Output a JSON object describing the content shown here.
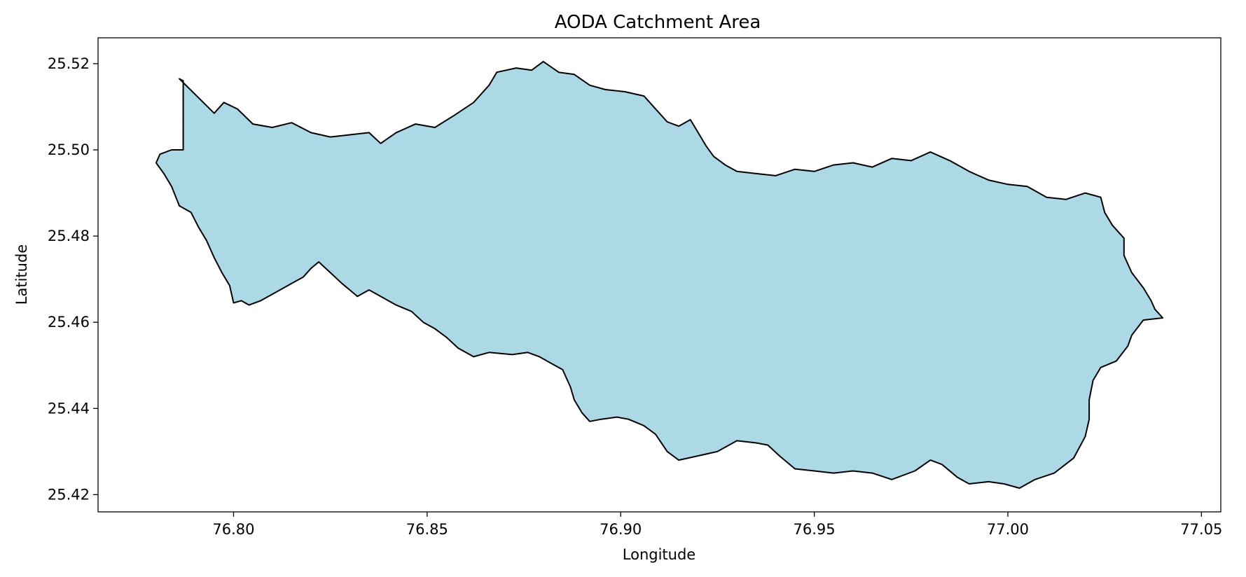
{
  "chart_data": {
    "type": "map",
    "title": "AODA Catchment Area",
    "xlabel": "Longitude",
    "ylabel": "Latitude",
    "xlim": [
      76.765,
      77.055
    ],
    "ylim": [
      25.416,
      25.526
    ],
    "xticks": [
      76.8,
      76.85,
      76.9,
      76.95,
      77.0,
      77.05
    ],
    "xtick_labels": [
      "76.80",
      "76.85",
      "76.90",
      "76.95",
      "77.00",
      "77.05"
    ],
    "yticks": [
      25.42,
      25.44,
      25.46,
      25.48,
      25.5,
      25.52
    ],
    "ytick_labels": [
      "25.42",
      "25.44",
      "25.46",
      "25.48",
      "25.50",
      "25.52"
    ],
    "grid": false,
    "fill_color": "#add8e6",
    "edge_color": "#000000",
    "features": [
      {
        "name": "AODA",
        "boundary": [
          [
            76.786,
            25.5165
          ],
          [
            76.795,
            25.5085
          ],
          [
            76.7975,
            25.511
          ],
          [
            76.801,
            25.5095
          ],
          [
            76.805,
            25.506
          ],
          [
            76.81,
            25.5052
          ],
          [
            76.815,
            25.5063
          ],
          [
            76.82,
            25.504
          ],
          [
            76.825,
            25.503
          ],
          [
            76.83,
            25.5035
          ],
          [
            76.835,
            25.504
          ],
          [
            76.838,
            25.5015
          ],
          [
            76.842,
            25.504
          ],
          [
            76.847,
            25.506
          ],
          [
            76.852,
            25.5052
          ],
          [
            76.857,
            25.508
          ],
          [
            76.862,
            25.511
          ],
          [
            76.866,
            25.515
          ],
          [
            76.868,
            25.518
          ],
          [
            76.873,
            25.519
          ],
          [
            76.877,
            25.5185
          ],
          [
            76.88,
            25.5205
          ],
          [
            76.884,
            25.518
          ],
          [
            76.888,
            25.5175
          ],
          [
            76.892,
            25.515
          ],
          [
            76.896,
            25.514
          ],
          [
            76.901,
            25.5135
          ],
          [
            76.906,
            25.5125
          ],
          [
            76.909,
            25.5095
          ],
          [
            76.912,
            25.5065
          ],
          [
            76.915,
            25.5055
          ],
          [
            76.918,
            25.507
          ],
          [
            76.92,
            25.504
          ],
          [
            76.922,
            25.501
          ],
          [
            76.924,
            25.4985
          ],
          [
            76.927,
            25.4965
          ],
          [
            76.93,
            25.495
          ],
          [
            76.935,
            25.4945
          ],
          [
            76.94,
            25.494
          ],
          [
            76.945,
            25.4955
          ],
          [
            76.95,
            25.495
          ],
          [
            76.955,
            25.4965
          ],
          [
            76.96,
            25.497
          ],
          [
            76.965,
            25.496
          ],
          [
            76.97,
            25.498
          ],
          [
            76.975,
            25.4975
          ],
          [
            76.98,
            25.4995
          ],
          [
            76.985,
            25.4975
          ],
          [
            76.99,
            25.495
          ],
          [
            76.995,
            25.493
          ],
          [
            77.0,
            25.492
          ],
          [
            77.005,
            25.4915
          ],
          [
            77.01,
            25.489
          ],
          [
            77.015,
            25.4885
          ],
          [
            77.02,
            25.49
          ],
          [
            77.024,
            25.489
          ],
          [
            77.025,
            25.4855
          ],
          [
            77.027,
            25.4825
          ],
          [
            77.03,
            25.4795
          ],
          [
            77.03,
            25.4755
          ],
          [
            77.032,
            25.4715
          ],
          [
            77.035,
            25.468
          ],
          [
            77.037,
            25.465
          ],
          [
            77.038,
            25.463
          ],
          [
            77.04,
            25.461
          ],
          [
            77.035,
            25.4605
          ],
          [
            77.032,
            25.457
          ],
          [
            77.031,
            25.4545
          ],
          [
            77.028,
            25.451
          ],
          [
            77.024,
            25.4495
          ],
          [
            77.022,
            25.4465
          ],
          [
            77.021,
            25.442
          ],
          [
            77.021,
            25.4375
          ],
          [
            77.02,
            25.4335
          ],
          [
            77.017,
            25.4285
          ],
          [
            77.012,
            25.425
          ],
          [
            77.007,
            25.4235
          ],
          [
            77.003,
            25.4215
          ],
          [
            76.999,
            25.4225
          ],
          [
            76.995,
            25.423
          ],
          [
            76.99,
            25.4225
          ],
          [
            76.987,
            25.424
          ],
          [
            76.983,
            25.427
          ],
          [
            76.98,
            25.428
          ],
          [
            76.976,
            25.4255
          ],
          [
            76.97,
            25.4235
          ],
          [
            76.965,
            25.425
          ],
          [
            76.96,
            25.4255
          ],
          [
            76.955,
            25.425
          ],
          [
            76.95,
            25.4255
          ],
          [
            76.945,
            25.426
          ],
          [
            76.941,
            25.429
          ],
          [
            76.938,
            25.4315
          ],
          [
            76.935,
            25.432
          ],
          [
            76.93,
            25.4325
          ],
          [
            76.925,
            25.43
          ],
          [
            76.92,
            25.429
          ],
          [
            76.915,
            25.428
          ],
          [
            76.912,
            25.43
          ],
          [
            76.909,
            25.434
          ],
          [
            76.906,
            25.436
          ],
          [
            76.902,
            25.4375
          ],
          [
            76.899,
            25.438
          ],
          [
            76.895,
            25.4375
          ],
          [
            76.892,
            25.437
          ],
          [
            76.89,
            25.439
          ],
          [
            76.888,
            25.442
          ],
          [
            76.887,
            25.445
          ],
          [
            76.885,
            25.449
          ],
          [
            76.882,
            25.4505
          ],
          [
            76.879,
            25.452
          ],
          [
            76.876,
            25.453
          ],
          [
            76.872,
            25.4525
          ],
          [
            76.866,
            25.453
          ],
          [
            76.862,
            25.452
          ],
          [
            76.858,
            25.454
          ],
          [
            76.855,
            25.4565
          ],
          [
            76.852,
            25.4585
          ],
          [
            76.849,
            25.46
          ],
          [
            76.846,
            25.4625
          ],
          [
            76.842,
            25.464
          ],
          [
            76.838,
            25.466
          ],
          [
            76.835,
            25.4675
          ],
          [
            76.832,
            25.466
          ],
          [
            76.83,
            25.4675
          ],
          [
            76.828,
            25.469
          ],
          [
            76.825,
            25.4715
          ],
          [
            76.822,
            25.474
          ],
          [
            76.82,
            25.4725
          ],
          [
            76.818,
            25.4705
          ],
          [
            76.815,
            25.469
          ],
          [
            76.813,
            25.468
          ],
          [
            76.81,
            25.4665
          ],
          [
            76.807,
            25.465
          ],
          [
            76.804,
            25.464
          ],
          [
            76.802,
            25.465
          ],
          [
            76.8,
            25.4645
          ],
          [
            76.799,
            25.4685
          ],
          [
            76.797,
            25.4715
          ],
          [
            76.795,
            25.475
          ],
          [
            76.793,
            25.479
          ],
          [
            76.791,
            25.482
          ],
          [
            76.789,
            25.4855
          ],
          [
            76.786,
            25.487
          ],
          [
            76.784,
            25.4915
          ],
          [
            76.782,
            25.4945
          ],
          [
            76.78,
            25.497
          ],
          [
            76.781,
            25.499
          ],
          [
            76.784,
            25.5
          ],
          [
            76.787,
            25.5
          ],
          [
            76.787,
            25.516
          ]
        ]
      }
    ]
  }
}
